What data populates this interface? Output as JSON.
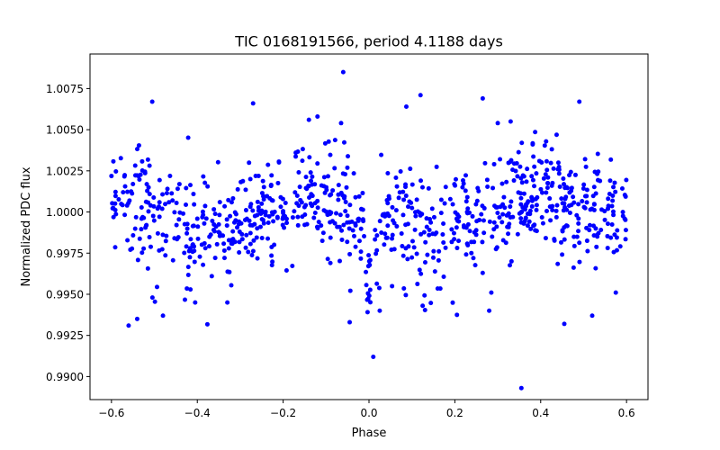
{
  "chart_data": {
    "type": "scatter",
    "title": "TIC 0168191566, period 4.1188 days",
    "xlabel": "Phase",
    "ylabel": "Normalized PDC flux",
    "xlim": [
      -0.65,
      0.65
    ],
    "ylim": [
      0.9886,
      1.0096
    ],
    "xticks": [
      -0.6,
      -0.4,
      -0.2,
      0.0,
      0.2,
      0.4,
      0.6
    ],
    "xtick_labels": [
      "−0.6",
      "−0.4",
      "−0.2",
      "0.0",
      "0.2",
      "0.4",
      "0.6"
    ],
    "yticks": [
      0.99,
      0.9925,
      0.995,
      0.9975,
      1.0,
      1.0025,
      1.005,
      1.0075
    ],
    "ytick_labels": [
      "0.9900",
      "0.9925",
      "0.9950",
      "0.9975",
      "1.0000",
      "1.0025",
      "1.0050",
      "1.0075"
    ],
    "grid": false,
    "marker_color": "#0000ff",
    "series": [
      {
        "name": "PDC flux",
        "x": [
          -0.06,
          0.12,
          0.265,
          0.49,
          -0.505,
          0.087,
          0.355,
          -0.56,
          -0.33,
          0.3,
          0.33,
          -0.27,
          -0.12,
          -0.14,
          -0.065,
          0.01,
          -0.54,
          0.455,
          -0.48,
          -0.405,
          0.52,
          0.575,
          -0.09,
          0.28,
          0.025,
          -0.045,
          0.125,
          0.285
        ],
        "y": [
          1.0085,
          1.0071,
          1.0069,
          1.0067,
          1.0067,
          1.0064,
          0.9893,
          0.9931,
          0.9945,
          1.0054,
          1.0055,
          1.0066,
          1.0058,
          1.0056,
          1.0054,
          0.9912,
          0.9935,
          0.9932,
          0.9937,
          0.9945,
          0.9937,
          0.9951,
          0.9969,
          0.994,
          0.994,
          0.9933,
          0.9943,
          0.9951
        ]
      }
    ]
  }
}
